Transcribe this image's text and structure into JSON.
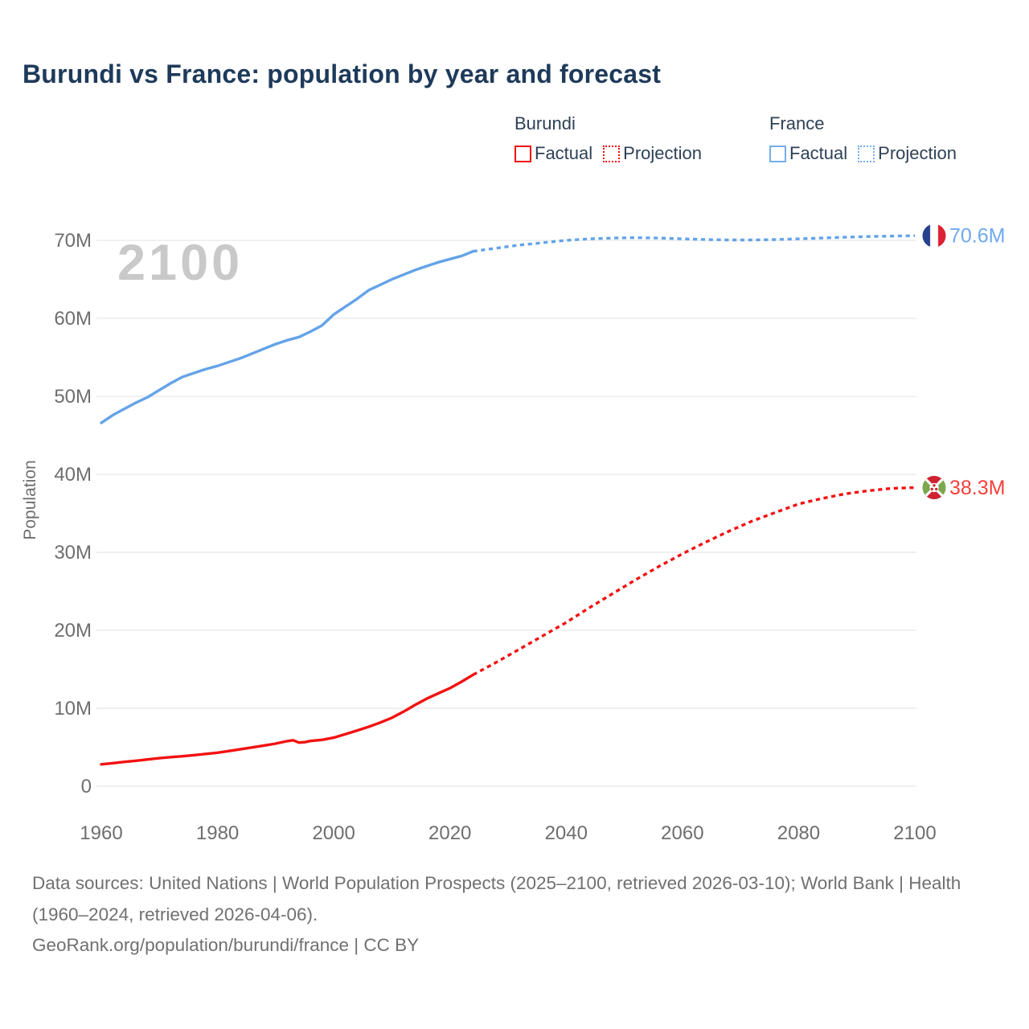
{
  "title": "Burundi vs France: population by year and forecast",
  "legend": {
    "groups": [
      {
        "label": "Burundi",
        "items": [
          {
            "label": "Factual",
            "line_style": "solid",
            "color": "#f20d0d"
          },
          {
            "label": "Projection",
            "line_style": "dotted",
            "color": "#f20d0d"
          }
        ]
      },
      {
        "label": "France",
        "items": [
          {
            "label": "Factual",
            "line_style": "solid",
            "color": "#74adea"
          },
          {
            "label": "Projection",
            "line_style": "dotted",
            "color": "#74adea"
          }
        ]
      }
    ]
  },
  "chart_data": {
    "type": "line",
    "title": "Burundi vs France: population by year and forecast",
    "xlabel": "",
    "ylabel": "Population",
    "watermark": "2100",
    "unit": "millions of people",
    "xlim": [
      1960,
      2100
    ],
    "ylim": [
      0,
      77
    ],
    "grid": "horizontal",
    "x_ticks": [
      1960,
      1980,
      2000,
      2020,
      2040,
      2060,
      2080,
      2100
    ],
    "y_ticks": [
      {
        "value": 0,
        "label": "0"
      },
      {
        "value": 10,
        "label": "10M"
      },
      {
        "value": 20,
        "label": "20M"
      },
      {
        "value": 30,
        "label": "30M"
      },
      {
        "value": 40,
        "label": "40M"
      },
      {
        "value": 50,
        "label": "50M"
      },
      {
        "value": 60,
        "label": "60M"
      },
      {
        "value": 70,
        "label": "70M"
      }
    ],
    "series": [
      {
        "id": "france-factual",
        "country": "France",
        "kind": "Factual",
        "color": "#64a3e8",
        "line_style": "solid",
        "x": [
          1960,
          1962,
          1964,
          1966,
          1968,
          1970,
          1972,
          1974,
          1976,
          1978,
          1980,
          1982,
          1984,
          1986,
          1988,
          1990,
          1992,
          1994,
          1996,
          1998,
          2000,
          2002,
          2004,
          2006,
          2008,
          2010,
          2012,
          2014,
          2016,
          2018,
          2020,
          2022,
          2024
        ],
        "values": [
          46.6,
          47.6,
          48.4,
          49.2,
          49.9,
          50.8,
          51.7,
          52.5,
          53.0,
          53.5,
          53.9,
          54.4,
          54.9,
          55.5,
          56.1,
          56.7,
          57.2,
          57.6,
          58.3,
          59.1,
          60.5,
          61.5,
          62.5,
          63.6,
          64.3,
          65.0,
          65.6,
          66.2,
          66.7,
          67.2,
          67.6,
          68.0,
          68.6
        ]
      },
      {
        "id": "france-projection",
        "country": "France",
        "kind": "Projection",
        "color": "#64a3e8",
        "line_style": "dotted",
        "x": [
          2024,
          2028,
          2032,
          2036,
          2040,
          2044,
          2048,
          2052,
          2056,
          2060,
          2064,
          2068,
          2072,
          2076,
          2080,
          2084,
          2088,
          2092,
          2096,
          2100
        ],
        "values": [
          68.6,
          69.0,
          69.4,
          69.7,
          70.0,
          70.2,
          70.3,
          70.35,
          70.3,
          70.2,
          70.1,
          70.05,
          70.05,
          70.1,
          70.2,
          70.3,
          70.4,
          70.5,
          70.55,
          70.6
        ]
      },
      {
        "id": "burundi-factual",
        "country": "Burundi",
        "kind": "Factual",
        "color": "#f21211",
        "line_style": "solid",
        "x": [
          1960,
          1962,
          1964,
          1966,
          1968,
          1970,
          1972,
          1974,
          1976,
          1978,
          1980,
          1982,
          1984,
          1986,
          1988,
          1990,
          1992,
          1993,
          1994,
          1995,
          1996,
          1998,
          2000,
          2002,
          2004,
          2006,
          2008,
          2010,
          2012,
          2014,
          2016,
          2018,
          2020,
          2022,
          2024
        ],
        "values": [
          2.8,
          2.96,
          3.12,
          3.27,
          3.43,
          3.6,
          3.73,
          3.85,
          3.99,
          4.14,
          4.3,
          4.52,
          4.75,
          4.98,
          5.22,
          5.46,
          5.78,
          5.9,
          5.6,
          5.65,
          5.8,
          5.95,
          6.23,
          6.68,
          7.13,
          7.62,
          8.17,
          8.77,
          9.56,
          10.42,
          11.23,
          11.92,
          12.58,
          13.4,
          14.3
        ]
      },
      {
        "id": "burundi-projection",
        "country": "Burundi",
        "kind": "Projection",
        "color": "#f21211",
        "line_style": "dotted",
        "x": [
          2024,
          2028,
          2032,
          2036,
          2040,
          2044,
          2048,
          2052,
          2056,
          2060,
          2064,
          2068,
          2072,
          2076,
          2080,
          2084,
          2088,
          2092,
          2096,
          2100
        ],
        "values": [
          14.3,
          15.9,
          17.6,
          19.3,
          21.0,
          22.9,
          24.7,
          26.5,
          28.2,
          29.8,
          31.3,
          32.7,
          34.0,
          35.1,
          36.2,
          36.9,
          37.5,
          37.9,
          38.2,
          38.3
        ]
      }
    ],
    "end_markers": [
      {
        "country": "France",
        "flag": "france",
        "year": 2100,
        "value": 70.6,
        "label": "70.6M",
        "label_color": "#6fa9ee"
      },
      {
        "country": "Burundi",
        "flag": "burundi",
        "year": 2100,
        "value": 38.3,
        "label": "38.3M",
        "label_color": "#f5413b"
      }
    ]
  },
  "footer": {
    "sources": "Data sources: United Nations | World Population Prospects (2025–2100, retrieved 2026-03-10); World Bank | Health (1960–2024, retrieved 2026-04-06).",
    "attribution": "GeoRank.org/population/burundi/france | CC BY"
  }
}
